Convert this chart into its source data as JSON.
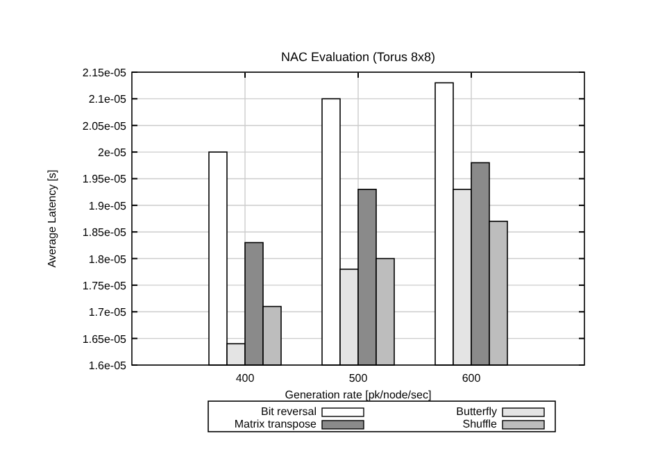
{
  "chart_data": {
    "type": "bar",
    "title": "NAC Evaluation (Torus 8x8)",
    "xlabel": "Generation rate [pk/node/sec]",
    "ylabel": "Average Latency [s]",
    "x": [
      400,
      500,
      600
    ],
    "xlim": [
      300,
      700
    ],
    "xticks": [
      400,
      500,
      600
    ],
    "ylim": [
      1.6e-05,
      2.15e-05
    ],
    "yticks": [
      {
        "value": 1.6e-05,
        "label": "1.6e-05"
      },
      {
        "value": 1.65e-05,
        "label": "1.65e-05"
      },
      {
        "value": 1.7e-05,
        "label": "1.7e-05"
      },
      {
        "value": 1.75e-05,
        "label": "1.75e-05"
      },
      {
        "value": 1.8e-05,
        "label": "1.8e-05"
      },
      {
        "value": 1.85e-05,
        "label": "1.85e-05"
      },
      {
        "value": 1.9e-05,
        "label": "1.9e-05"
      },
      {
        "value": 1.95e-05,
        "label": "1.95e-05"
      },
      {
        "value": 2e-05,
        "label": "2e-05"
      },
      {
        "value": 2.05e-05,
        "label": "2.05e-05"
      },
      {
        "value": 2.1e-05,
        "label": "2.1e-05"
      },
      {
        "value": 2.15e-05,
        "label": "2.15e-05"
      }
    ],
    "grid": true,
    "legend": "bottom",
    "series": [
      {
        "name": "Bit reversal",
        "color": "#ffffff",
        "values": [
          2e-05,
          2.1e-05,
          2.13e-05
        ]
      },
      {
        "name": "Butterfly",
        "color": "#e4e4e4",
        "values": [
          1.64e-05,
          1.78e-05,
          1.93e-05
        ]
      },
      {
        "name": "Matrix transpose",
        "color": "#8a8a8a",
        "values": [
          1.83e-05,
          1.93e-05,
          1.98e-05
        ]
      },
      {
        "name": "Shuffle",
        "color": "#bdbdbd",
        "values": [
          1.71e-05,
          1.8e-05,
          1.87e-05
        ]
      }
    ]
  }
}
